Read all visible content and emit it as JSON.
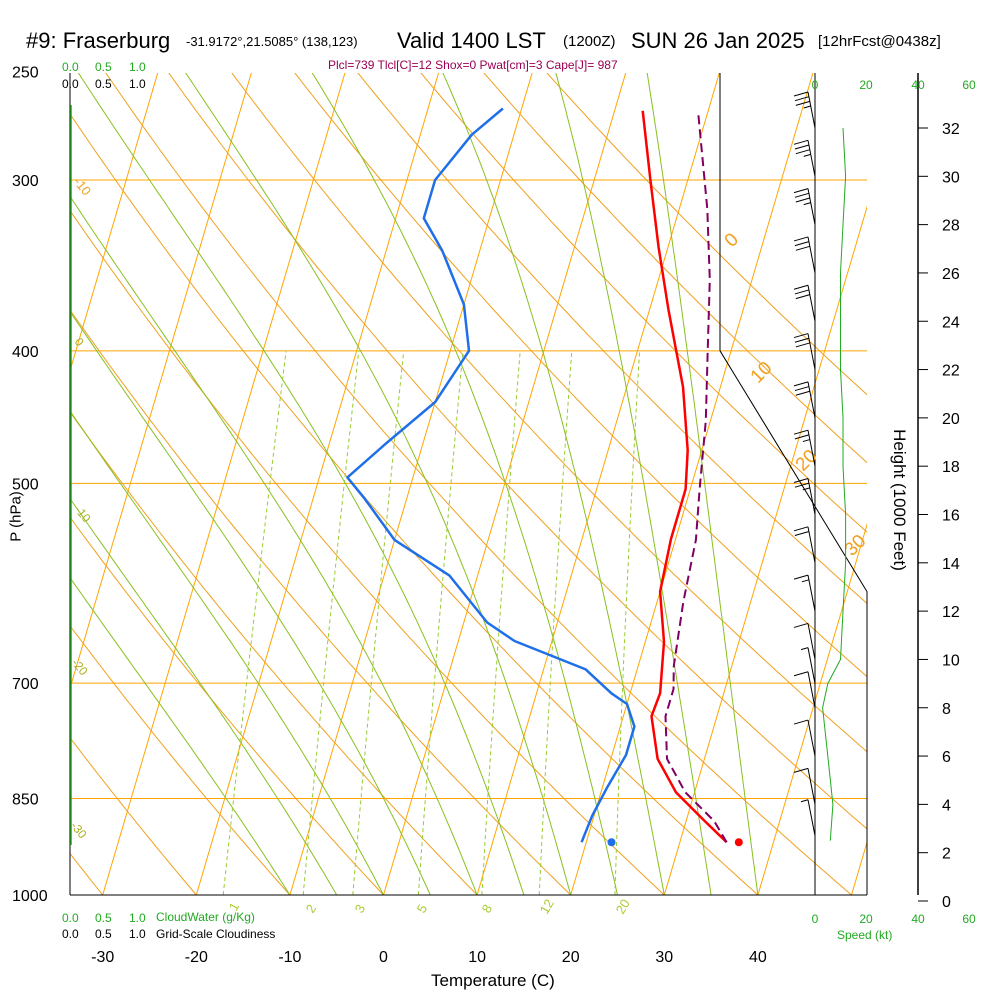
{
  "header": {
    "station": "#9: Fraserburg",
    "coords": "-31.9172°,21.5085° (138,123)",
    "valid": "Valid 1400 LST",
    "zulu": "(1200Z)",
    "date": "SUN 26 Jan 2025",
    "forecast": "[12hrFcst@0438z]"
  },
  "indices": "Plcl=739 Tlcl[C]=12 Shox=0 Pwat[cm]=3 Cape[J]= 987",
  "scales": {
    "cloudwater_ticks": [
      "0.0",
      "0.5",
      "1.0"
    ],
    "cloudiness_ticks": [
      "0.0",
      "0.5",
      "1.0"
    ],
    "cloudwater_label": "CloudWater (g/Kg)",
    "cloudiness_label": "Grid-Scale Cloudiness",
    "speed_label": "Speed (kt)",
    "speed_ticks": [
      "0",
      "20",
      "40",
      "60"
    ]
  },
  "colors": {
    "isobar": "#ffa500",
    "dry_adiabat": "#f0a020",
    "moist_adiabat": "#88c020",
    "mixing_ratio": "#99cc33",
    "temperature": "#ff0000",
    "dewpoint": "#1f6fe8",
    "parcel": "#800060",
    "cloud": "#22aa22",
    "indices_text": "#990055"
  },
  "chart_data": {
    "type": "line",
    "title": "#9: Fraserburg  Valid 1400 LST (1200Z) SUN 26 Jan 2025 [12hrFcst@0438z]",
    "xlabel": "Temperature (C)",
    "ylabel": "P (hPa)",
    "y2label": "Height (1000 Feet)",
    "xlim": [
      -35,
      52
    ],
    "ylim_hpa": [
      1000,
      250
    ],
    "x_ticks": [
      -30,
      -20,
      -10,
      0,
      10,
      20,
      30,
      40
    ],
    "y_ticks": [
      250,
      300,
      400,
      500,
      700,
      850,
      1000
    ],
    "height_ticks": [
      0,
      2,
      4,
      6,
      8,
      10,
      12,
      14,
      16,
      18,
      20,
      22,
      24,
      26,
      28,
      30,
      32
    ],
    "dry_adiabat_labels": [
      "-10",
      "0",
      "10",
      "20",
      "30"
    ],
    "moist_adiabat_labels": [
      "10",
      "0",
      "-10",
      "-20",
      "-30"
    ],
    "mixing_ratio_labels": [
      "1",
      "2",
      "3",
      "5",
      "8",
      "12",
      "20"
    ],
    "series": [
      {
        "name": "Temperature",
        "color": "#ff0000",
        "points": [
          [
            35,
            915
          ],
          [
            32,
            883
          ],
          [
            28,
            841
          ],
          [
            25,
            795
          ],
          [
            23,
            740
          ],
          [
            23.2,
            712
          ],
          [
            22,
            653
          ],
          [
            20,
            600
          ],
          [
            19.5,
            549
          ],
          [
            19.5,
            505
          ],
          [
            18.5,
            473
          ],
          [
            16,
            425
          ],
          [
            12,
            373
          ],
          [
            9,
            336
          ],
          [
            6,
            300
          ],
          [
            3,
            267
          ]
        ]
      },
      {
        "name": "Dewpoint",
        "color": "#1f6fe8",
        "points": [
          [
            19.5,
            915
          ],
          [
            19.8,
            875
          ],
          [
            20.5,
            835
          ],
          [
            21.5,
            790
          ],
          [
            21.5,
            753
          ],
          [
            20,
            725
          ],
          [
            18,
            712
          ],
          [
            14.5,
            684
          ],
          [
            6,
            652
          ],
          [
            2.5,
            632
          ],
          [
            -3,
            584
          ],
          [
            -10,
            550
          ],
          [
            -14.5,
            513
          ],
          [
            -17,
            495
          ],
          [
            -14,
            468
          ],
          [
            -10,
            436
          ],
          [
            -8,
            400
          ],
          [
            -10,
            370
          ],
          [
            -14,
            338
          ],
          [
            -17,
            320
          ],
          [
            -17,
            300
          ],
          [
            -14.5,
            278
          ],
          [
            -12,
            266
          ]
        ]
      },
      {
        "name": "Parcel",
        "color": "#800060",
        "points": [
          [
            35,
            915
          ],
          [
            33,
            883
          ],
          [
            29,
            841
          ],
          [
            26,
            795
          ],
          [
            24.5,
            740
          ],
          [
            24.5,
            707
          ],
          [
            23.8,
            680
          ],
          [
            22.8,
            610
          ],
          [
            22.2,
            550
          ],
          [
            21,
            505
          ],
          [
            19.5,
            450
          ],
          [
            17.5,
            400
          ],
          [
            15.5,
            355
          ],
          [
            13,
            315
          ],
          [
            9,
            268
          ]
        ]
      }
    ],
    "surface_markers": [
      {
        "name": "Surface temperature",
        "value": 36.3,
        "pressure_hpa": 915
      },
      {
        "name": "Surface dewpoint",
        "value": 22.7,
        "pressure_hpa": 915
      }
    ],
    "cloud_water_profile": {
      "name": "CloudWater (g/Kg)",
      "max": 1.0,
      "values": [
        0,
        0,
        0,
        0,
        0,
        0,
        0,
        0,
        0,
        0
      ]
    },
    "wind_speed_profile_kt": {
      "name": "Speed (kt)",
      "height_kft": [
        2.5,
        4,
        6,
        8,
        9,
        10,
        12,
        14,
        16,
        18,
        20,
        22,
        24,
        26,
        28,
        30,
        32
      ],
      "speed": [
        6,
        7,
        5,
        3,
        5,
        10,
        11,
        12,
        12,
        11,
        11,
        10,
        10,
        10,
        11,
        12,
        11
      ]
    },
    "wind_barbs": [
      {
        "height_kft": 2.7,
        "speed_kt": 5,
        "dir_deg": 340
      },
      {
        "height_kft": 4,
        "speed_kt": 10,
        "dir_deg": 330
      },
      {
        "height_kft": 6,
        "speed_kt": 10,
        "dir_deg": 310
      },
      {
        "height_kft": 8,
        "speed_kt": 10,
        "dir_deg": 300
      },
      {
        "height_kft": 9,
        "speed_kt": 5,
        "dir_deg": 270
      },
      {
        "height_kft": 10,
        "speed_kt": 10,
        "dir_deg": 300
      },
      {
        "height_kft": 12,
        "speed_kt": 15,
        "dir_deg": 310
      },
      {
        "height_kft": 14,
        "speed_kt": 20,
        "dir_deg": 320
      },
      {
        "height_kft": 16,
        "speed_kt": 25,
        "dir_deg": 320
      },
      {
        "height_kft": 18,
        "speed_kt": 25,
        "dir_deg": 320
      },
      {
        "height_kft": 20,
        "speed_kt": 30,
        "dir_deg": 320
      },
      {
        "height_kft": 22,
        "speed_kt": 30,
        "dir_deg": 320
      },
      {
        "height_kft": 24,
        "speed_kt": 30,
        "dir_deg": 320
      },
      {
        "height_kft": 26,
        "speed_kt": 30,
        "dir_deg": 320
      },
      {
        "height_kft": 28,
        "speed_kt": 35,
        "dir_deg": 320
      },
      {
        "height_kft": 30,
        "speed_kt": 35,
        "dir_deg": 320
      },
      {
        "height_kft": 32,
        "speed_kt": 35,
        "dir_deg": 320
      }
    ]
  }
}
